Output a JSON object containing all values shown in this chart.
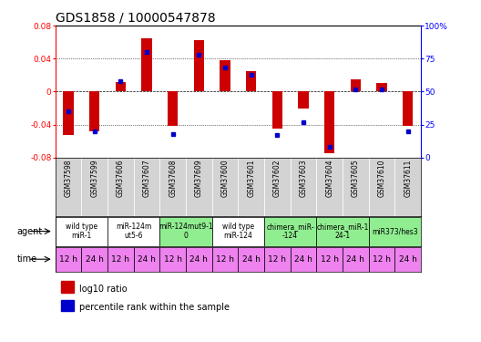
{
  "title": "GDS1858 / 10000547878",
  "samples": [
    "GSM37598",
    "GSM37599",
    "GSM37606",
    "GSM37607",
    "GSM37608",
    "GSM37609",
    "GSM37600",
    "GSM37601",
    "GSM37602",
    "GSM37603",
    "GSM37604",
    "GSM37605",
    "GSM37610",
    "GSM37611"
  ],
  "log10_ratio": [
    -0.052,
    -0.048,
    0.012,
    0.065,
    -0.042,
    0.062,
    0.038,
    0.025,
    -0.045,
    -0.02,
    -0.075,
    0.015,
    0.01,
    -0.042
  ],
  "pct_rank": [
    35,
    20,
    58,
    80,
    18,
    78,
    68,
    63,
    17,
    27,
    8,
    52,
    52,
    20
  ],
  "agents": [
    {
      "label": "wild type\nmiR-1",
      "samples": [
        0,
        1
      ],
      "color": "#ffffff"
    },
    {
      "label": "miR-124m\nut5-6",
      "samples": [
        2,
        3
      ],
      "color": "#ffffff"
    },
    {
      "label": "miR-124mut9-1\n0",
      "samples": [
        4,
        5
      ],
      "color": "#90ee90"
    },
    {
      "label": "wild type\nmiR-124",
      "samples": [
        6,
        7
      ],
      "color": "#ffffff"
    },
    {
      "label": "chimera_miR-\n-124",
      "samples": [
        8,
        9
      ],
      "color": "#90ee90"
    },
    {
      "label": "chimera_miR-1\n24-1",
      "samples": [
        10,
        11
      ],
      "color": "#90ee90"
    },
    {
      "label": "miR373/hes3",
      "samples": [
        12,
        13
      ],
      "color": "#90ee90"
    }
  ],
  "times": [
    "12 h",
    "24 h",
    "12 h",
    "24 h",
    "12 h",
    "24 h",
    "12 h",
    "24 h",
    "12 h",
    "24 h",
    "12 h",
    "24 h",
    "12 h",
    "24 h"
  ],
  "ylim": [
    -0.08,
    0.08
  ],
  "y2lim": [
    0,
    100
  ],
  "bar_color": "#cc0000",
  "dot_color": "#0000cc",
  "bg_color": "#ffffff",
  "title_fontsize": 10,
  "tick_fontsize": 6.5,
  "sample_fontsize": 5.5,
  "agent_fontsize": 5.5,
  "time_fontsize": 6.5,
  "legend_fontsize": 7,
  "row_label_fontsize": 7
}
